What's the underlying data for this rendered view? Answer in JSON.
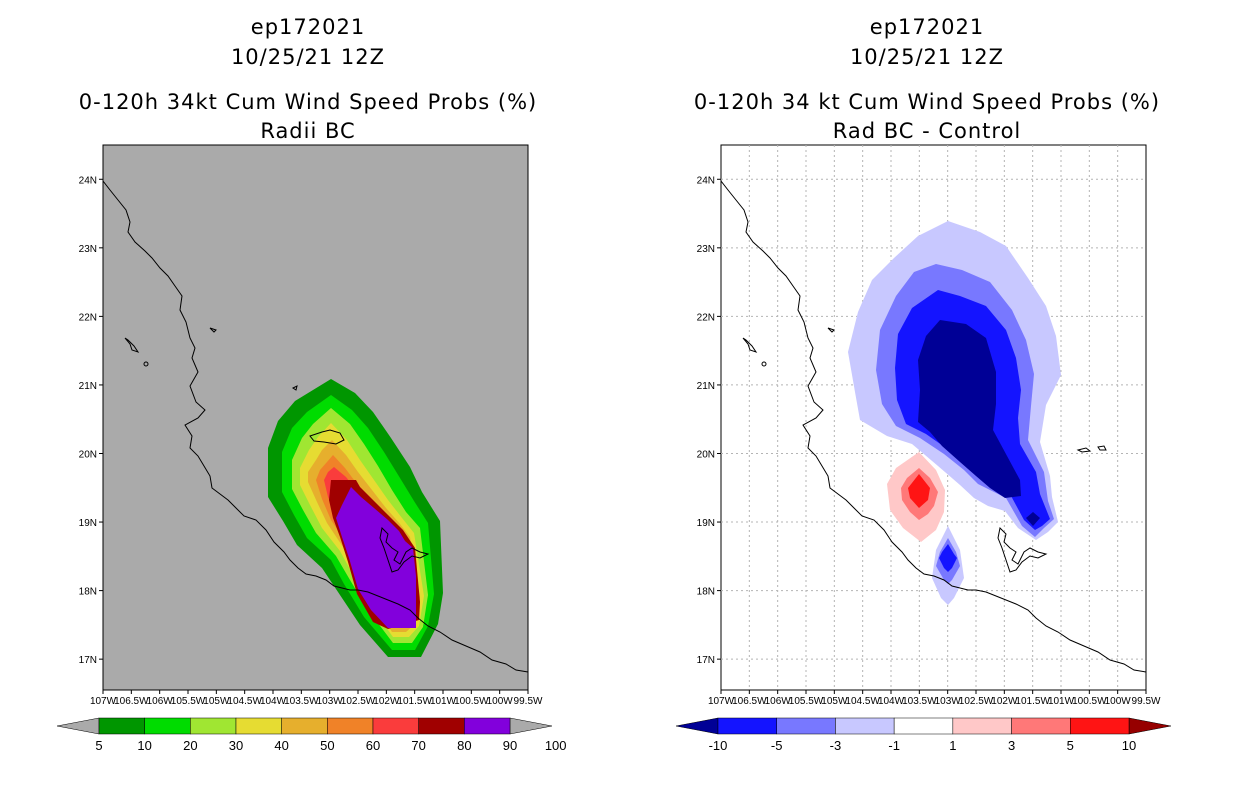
{
  "charts": [
    {
      "storm_id": "ep172021",
      "date": "10/25/21 12Z",
      "title": "0-120h 34kt Cum Wind Speed Probs (%)",
      "subtitle": "Radii BC"
    },
    {
      "storm_id": "ep172021",
      "date": "10/25/21 12Z",
      "title": "0-120h 34 kt Cum Wind Speed Probs (%)",
      "subtitle": "Rad BC - Control"
    }
  ],
  "chart_data": [
    {
      "type": "filled-contour map",
      "title": "0-120h 34kt Cum Wind Speed Probs (%)",
      "subtitle": "Radii BC",
      "x_ticks": [
        "107W",
        "106.5W",
        "106W",
        "105.5W",
        "105W",
        "104.5W",
        "104W",
        "103.5W",
        "103W",
        "102.5W",
        "102W",
        "101.5W",
        "101W",
        "100.5W",
        "100W",
        "99.5W"
      ],
      "x_values": [
        -107,
        -106.5,
        -106,
        -105.5,
        -105,
        -104.5,
        -104,
        -103.5,
        -103,
        -102.5,
        -102,
        -101.5,
        -101,
        -100.5,
        -100,
        -99.5
      ],
      "y_ticks": [
        "17N",
        "18N",
        "19N",
        "20N",
        "21N",
        "22N",
        "23N",
        "24N"
      ],
      "y_values": [
        17,
        18,
        19,
        20,
        21,
        22,
        23,
        24
      ],
      "xlim": [
        -107,
        -99.5
      ],
      "ylim": [
        16.55,
        24.5
      ],
      "background": "#aaaaaa",
      "colorbar_levels": [
        "5",
        "10",
        "20",
        "30",
        "40",
        "50",
        "60",
        "70",
        "80",
        "90",
        "100"
      ],
      "colorbar_colors": [
        "#009600",
        "#00dc00",
        "#a0e632",
        "#e6dc32",
        "#e6af2d",
        "#f08228",
        "#fa3c3c",
        "#a00000",
        "#8200dc"
      ],
      "colorbar_extend_color": "#aaaaaa",
      "max_center": {
        "lon": -101.7,
        "lat": 18.6,
        "value": 100
      }
    },
    {
      "type": "filled-contour map",
      "title": "0-120h 34 kt Cum Wind Speed Probs (%)",
      "subtitle": "Rad BC - Control",
      "x_ticks": [
        "107W",
        "106.5W",
        "106W",
        "105.5W",
        "105W",
        "104.5W",
        "104W",
        "103.5W",
        "103W",
        "102.5W",
        "102W",
        "101.5W",
        "101W",
        "100.5W",
        "100W",
        "99.5W"
      ],
      "x_values": [
        -107,
        -106.5,
        -106,
        -105.5,
        -105,
        -104.5,
        -104,
        -103.5,
        -103,
        -102.5,
        -102,
        -101.5,
        -101,
        -100.5,
        -100,
        -99.5
      ],
      "y_ticks": [
        "17N",
        "18N",
        "19N",
        "20N",
        "21N",
        "22N",
        "23N",
        "24N"
      ],
      "y_values": [
        17,
        18,
        19,
        20,
        21,
        22,
        23,
        24
      ],
      "xlim": [
        -107,
        -99.5
      ],
      "ylim": [
        16.55,
        24.5
      ],
      "background": "#ffffff",
      "colorbar_levels": [
        "-10",
        "-5",
        "-3",
        "-1",
        "1",
        "3",
        "5",
        "10"
      ],
      "colorbar_colors": [
        "#000096",
        "#1414ff",
        "#7878ff",
        "#c8c8ff",
        "#ffffff",
        "#ffc8c8",
        "#ff7878",
        "#ff1414",
        "#960000"
      ],
      "min_center": {
        "lon": -102.5,
        "lat": 20.8,
        "value": -10
      },
      "max_center": {
        "lon": -103.5,
        "lat": 19.5,
        "value": 10
      }
    }
  ]
}
